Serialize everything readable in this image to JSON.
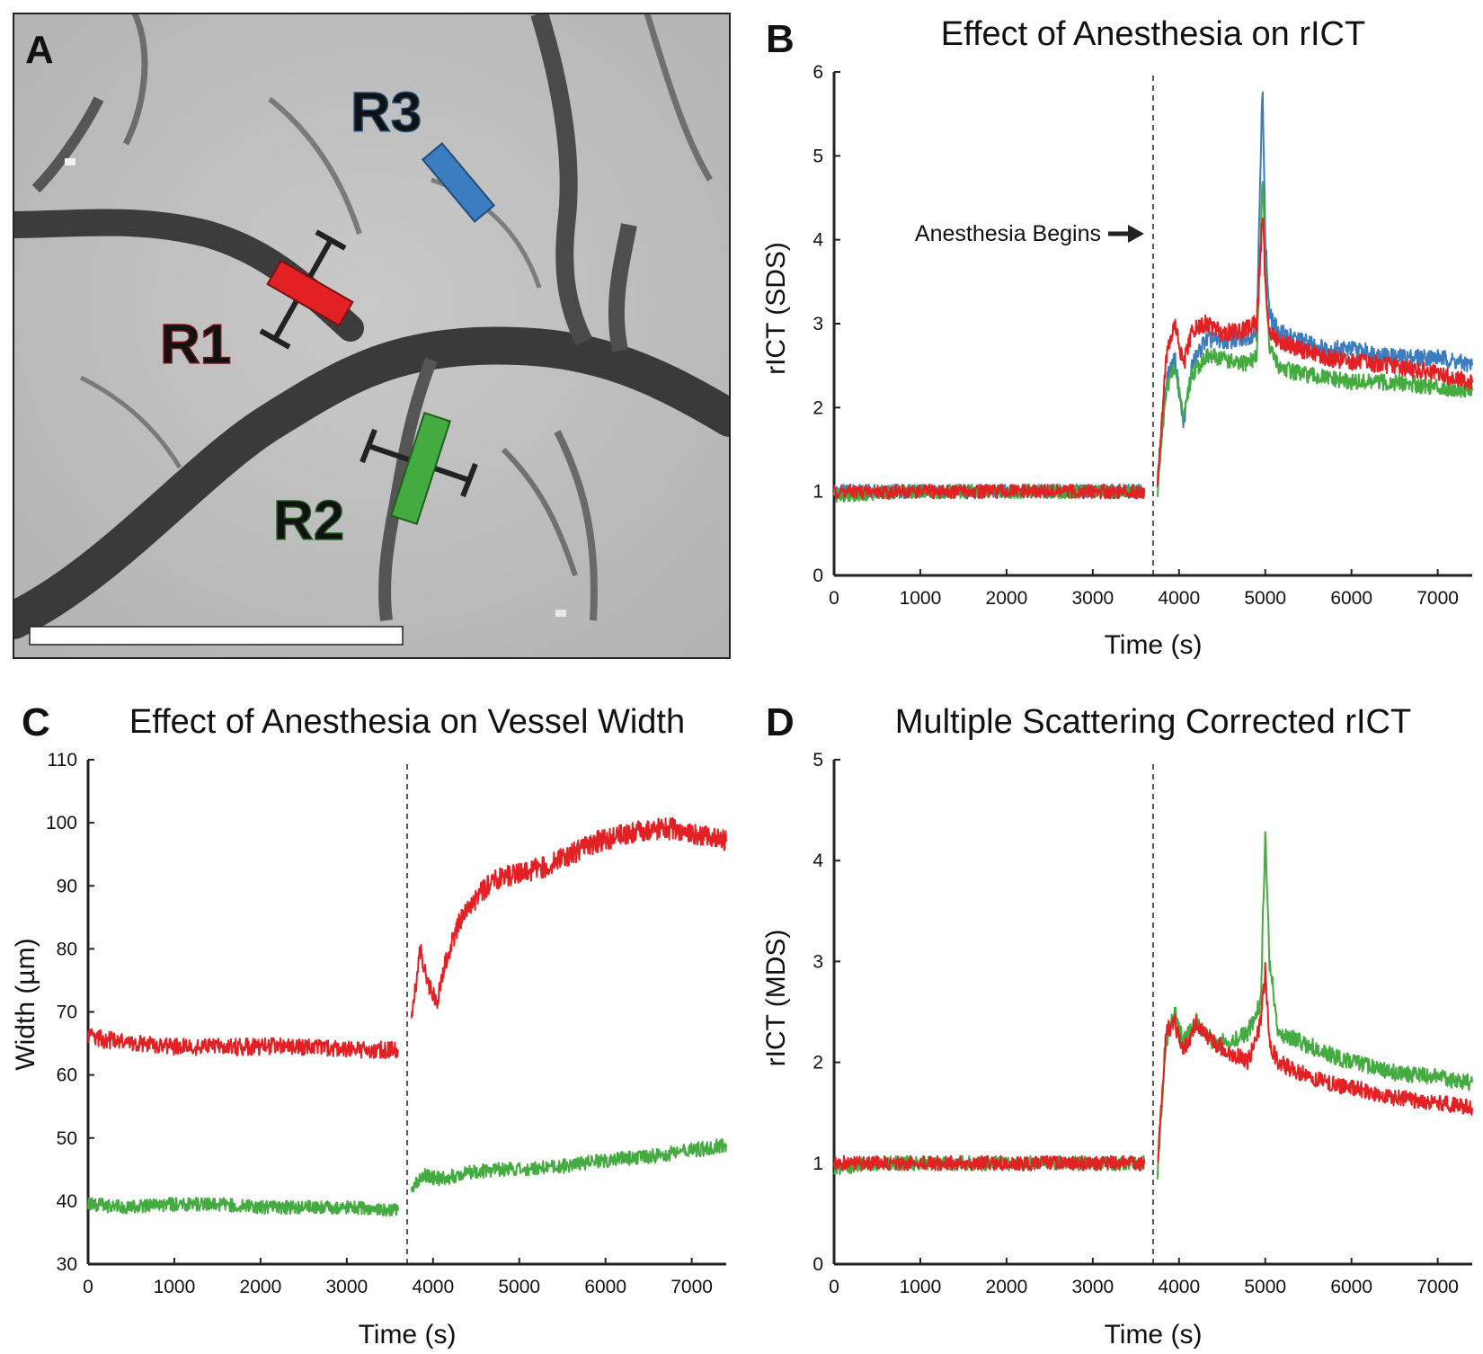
{
  "panels": {
    "A": {
      "letter": "A",
      "regions": [
        {
          "name": "R1",
          "color": "#e32124"
        },
        {
          "name": "R2",
          "color": "#43ab3f"
        },
        {
          "name": "R3",
          "color": "#3c7dbf"
        }
      ]
    },
    "B": {
      "letter": "B"
    },
    "C": {
      "letter": "C"
    },
    "D": {
      "letter": "D"
    }
  },
  "chart_data": [
    {
      "id": "B",
      "type": "line",
      "title": "Effect of Anesthesia on rICT",
      "xlabel": "Time (s)",
      "ylabel": "rICT (SDS)",
      "xlim": [
        0,
        7400
      ],
      "ylim": [
        0,
        6
      ],
      "xticks": [
        0,
        1000,
        2000,
        3000,
        4000,
        5000,
        6000,
        7000
      ],
      "yticks": [
        0,
        1,
        2,
        3,
        4,
        5,
        6
      ],
      "event_line_x": 3700,
      "annotation": "Anesthesia Begins",
      "series": [
        {
          "name": "R3",
          "color": "#3c7dbf",
          "x": [
            0,
            500,
            1000,
            1500,
            2000,
            2500,
            3000,
            3600,
            3700,
            3750,
            3850,
            3950,
            4050,
            4150,
            4300,
            4500,
            4700,
            4900,
            4970,
            5000,
            5050,
            5150,
            5400,
            5700,
            6000,
            6500,
            7000,
            7400
          ],
          "y": [
            1.0,
            1.0,
            1.0,
            1.0,
            1.0,
            1.0,
            1.0,
            1.0,
            null,
            1.1,
            2.3,
            2.6,
            1.8,
            2.5,
            2.8,
            2.8,
            2.8,
            2.9,
            5.9,
            4.0,
            3.1,
            2.9,
            2.8,
            2.7,
            2.7,
            2.6,
            2.6,
            2.5
          ]
        },
        {
          "name": "R2",
          "color": "#43ab3f",
          "x": [
            0,
            500,
            1000,
            1500,
            2000,
            2500,
            3000,
            3600,
            3700,
            3750,
            3850,
            3950,
            4050,
            4150,
            4300,
            4500,
            4700,
            4900,
            4970,
            5000,
            5050,
            5150,
            5400,
            5700,
            6000,
            6500,
            7000,
            7400
          ],
          "y": [
            0.95,
            0.98,
            1.0,
            1.0,
            1.0,
            1.0,
            1.0,
            1.0,
            null,
            1.0,
            2.2,
            2.5,
            1.9,
            2.4,
            2.6,
            2.6,
            2.5,
            2.6,
            4.8,
            3.6,
            2.7,
            2.5,
            2.4,
            2.35,
            2.3,
            2.3,
            2.25,
            2.2
          ]
        },
        {
          "name": "R1",
          "color": "#e32124",
          "x": [
            0,
            500,
            1000,
            1500,
            2000,
            2500,
            3000,
            3600,
            3700,
            3750,
            3850,
            3950,
            4050,
            4150,
            4300,
            4500,
            4700,
            4900,
            4970,
            5000,
            5050,
            5150,
            5400,
            5700,
            6000,
            6500,
            7000,
            7400
          ],
          "y": [
            1.0,
            1.0,
            1.0,
            1.0,
            1.0,
            1.0,
            1.0,
            1.0,
            null,
            1.1,
            2.6,
            3.0,
            2.5,
            2.9,
            3.0,
            2.9,
            2.9,
            3.0,
            4.3,
            3.5,
            2.9,
            2.8,
            2.7,
            2.6,
            2.55,
            2.5,
            2.4,
            2.3
          ]
        }
      ]
    },
    {
      "id": "C",
      "type": "line",
      "title": "Effect of Anesthesia on Vessel Width",
      "xlabel": "Time (s)",
      "ylabel": "Width (µm)",
      "xlim": [
        0,
        7400
      ],
      "ylim": [
        30,
        110
      ],
      "xticks": [
        0,
        1000,
        2000,
        3000,
        4000,
        5000,
        6000,
        7000
      ],
      "yticks": [
        30,
        40,
        50,
        60,
        70,
        80,
        90,
        100,
        110
      ],
      "event_line_x": 3700,
      "series": [
        {
          "name": "R1",
          "color": "#e32124",
          "x": [
            0,
            500,
            1000,
            1500,
            2000,
            2500,
            3000,
            3600,
            3700,
            3750,
            3850,
            3950,
            4050,
            4150,
            4300,
            4500,
            4700,
            5000,
            5300,
            5600,
            5900,
            6200,
            6500,
            6800,
            7100,
            7400
          ],
          "y": [
            66,
            65,
            64.5,
            64.5,
            64.5,
            64.5,
            64,
            64,
            null,
            68,
            80,
            74,
            72,
            78,
            84,
            88,
            91,
            92,
            93,
            95,
            97,
            98,
            99,
            99,
            98,
            97
          ]
        },
        {
          "name": "R2",
          "color": "#43ab3f",
          "x": [
            0,
            500,
            1000,
            1500,
            2000,
            2500,
            3000,
            3600,
            3700,
            3750,
            3900,
            4100,
            4400,
            4700,
            5000,
            5500,
            6000,
            6500,
            7000,
            7400
          ],
          "y": [
            39.5,
            39,
            39.5,
            39.5,
            39,
            39,
            39,
            38.5,
            null,
            42,
            44,
            43.5,
            44.5,
            45,
            45,
            45.5,
            46.5,
            47,
            48,
            49
          ]
        }
      ]
    },
    {
      "id": "D",
      "type": "line",
      "title": "Multiple Scattering Corrected rICT",
      "xlabel": "Time (s)",
      "ylabel": "rICT (MDS)",
      "xlim": [
        0,
        7400
      ],
      "ylim": [
        0,
        5
      ],
      "xticks": [
        0,
        1000,
        2000,
        3000,
        4000,
        5000,
        6000,
        7000
      ],
      "yticks": [
        0,
        1,
        2,
        3,
        4,
        5
      ],
      "event_line_x": 3700,
      "series": [
        {
          "name": "R2",
          "color": "#43ab3f",
          "x": [
            0,
            500,
            1000,
            1500,
            2000,
            2500,
            3000,
            3600,
            3700,
            3750,
            3850,
            3950,
            4050,
            4200,
            4400,
            4600,
            4800,
            4950,
            5000,
            5050,
            5150,
            5400,
            5700,
            6000,
            6500,
            7000,
            7400
          ],
          "y": [
            0.95,
            1.0,
            1.0,
            1.0,
            1.0,
            1.0,
            1.0,
            1.0,
            null,
            0.9,
            2.2,
            2.5,
            2.2,
            2.4,
            2.2,
            2.2,
            2.3,
            2.6,
            4.3,
            3.0,
            2.3,
            2.2,
            2.1,
            2.0,
            1.9,
            1.85,
            1.8
          ]
        },
        {
          "name": "R1",
          "color": "#e32124",
          "x": [
            0,
            500,
            1000,
            1500,
            2000,
            2500,
            3000,
            3600,
            3700,
            3750,
            3850,
            3950,
            4050,
            4200,
            4400,
            4600,
            4800,
            4950,
            5000,
            5050,
            5150,
            5400,
            5700,
            6000,
            6500,
            7000,
            7400
          ],
          "y": [
            1.0,
            1.0,
            1.0,
            1.0,
            1.0,
            1.0,
            1.0,
            1.0,
            null,
            1.0,
            2.3,
            2.4,
            2.1,
            2.4,
            2.2,
            2.1,
            2.0,
            2.4,
            2.9,
            2.2,
            2.0,
            1.9,
            1.8,
            1.75,
            1.65,
            1.6,
            1.55
          ]
        }
      ]
    }
  ]
}
